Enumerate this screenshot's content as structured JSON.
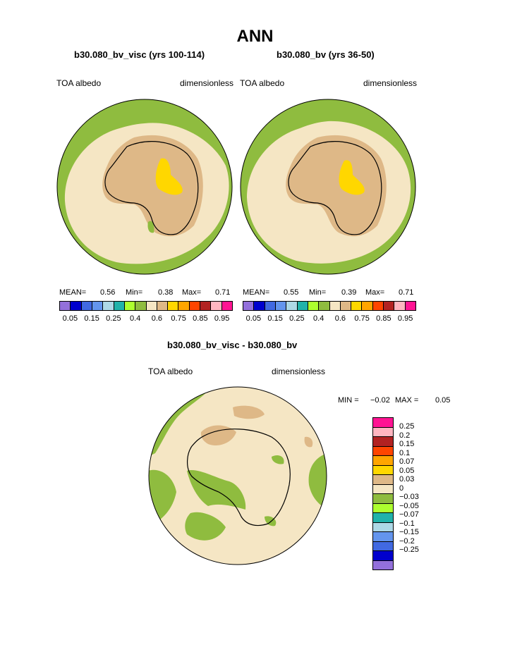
{
  "title": "ANN",
  "panels": [
    {
      "case_label": "b30.080_bv_visc (yrs 100-114)",
      "var_left": "TOA albedo",
      "var_right": "dimensionless",
      "stats": {
        "mean_label": "MEAN=",
        "mean": "0.56",
        "min_label": "Min=",
        "min": "0.38",
        "max_label": "Max=",
        "max": "0.71"
      }
    },
    {
      "case_label": "b30.080_bv (yrs 36-50)",
      "var_left": "TOA albedo",
      "var_right": "dimensionless",
      "stats": {
        "mean_label": "MEAN=",
        "mean": "0.55",
        "min_label": "Min=",
        "min": "0.39",
        "max_label": "Max=",
        "max": "0.71"
      }
    }
  ],
  "colorbar": {
    "colors": [
      "#9370db",
      "#0000cd",
      "#4169e1",
      "#6495ed",
      "#add8e6",
      "#20b2aa",
      "#adff2f",
      "#8fbc3f",
      "#f5e6c4",
      "#deb887",
      "#ffd700",
      "#ffa500",
      "#ff4500",
      "#b22222",
      "#ffb6c1",
      "#ff1493"
    ],
    "tick_labels": [
      "0.05",
      "0.15",
      "0.25",
      "0.4",
      "0.6",
      "0.75",
      "0.85",
      "0.95"
    ]
  },
  "diff": {
    "case_label": "b30.080_bv_visc - b30.080_bv",
    "var_left": "TOA albedo",
    "var_right": "dimensionless",
    "min_label": "MIN =",
    "min": "−0.02",
    "max_label": "MAX =",
    "max": "0.05",
    "legend_colors": [
      "#ff1493",
      "#ffb6c1",
      "#b22222",
      "#ff4500",
      "#ffa500",
      "#ffd700",
      "#deb887",
      "#f5e6c4",
      "#8fbc3f",
      "#adff2f",
      "#20b2aa",
      "#add8e6",
      "#6495ed",
      "#4169e1",
      "#0000cd",
      "#9370db"
    ],
    "legend_labels": [
      "0.25",
      "0.2",
      "0.15",
      "0.1",
      "0.07",
      "0.05",
      "0.03",
      "0",
      "−0.03",
      "−0.05",
      "−0.07",
      "−0.1",
      "−0.15",
      "−0.2",
      "−0.25"
    ]
  },
  "map_colors": {
    "green": "#8fbc3f",
    "cream": "#f5e6c4",
    "tan": "#deb887",
    "yellow": "#ffd700"
  }
}
